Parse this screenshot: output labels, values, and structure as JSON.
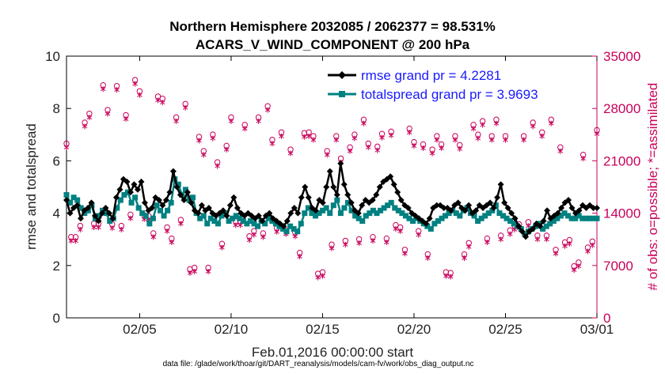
{
  "chart_data": {
    "type": "line",
    "title": "Northern Hemisphere 2032085 / 2062377 = 98.531%",
    "subtitle": "ACARS_V_WIND_COMPONENT @ 200 hPa",
    "ylabel": "rmse and totalspread",
    "ylabel_right": "# of obs: o=possible; *=assimilated",
    "xlabel": "Feb.01,2016 00:00:00 start",
    "footnote": "data file: /glade/work/thoar/git/DART_reanalysis/models/cam-fv/work/obs_diag_output.nc",
    "xlim": [
      1,
      30
    ],
    "ylim": [
      0,
      10
    ],
    "ylim_right": [
      0,
      35000
    ],
    "x_ticks": [
      5,
      10,
      15,
      20,
      25,
      30
    ],
    "x_tick_labels": [
      "02/05",
      "02/10",
      "02/15",
      "02/20",
      "02/25",
      "03/01"
    ],
    "y_ticks": [
      0,
      2,
      4,
      6,
      8,
      10
    ],
    "y_tick_labels": [
      "0",
      "2",
      "4",
      "6",
      "8",
      "10"
    ],
    "y_ticks_right": [
      0,
      7000,
      14000,
      21000,
      28000,
      35000
    ],
    "y_tick_labels_right": [
      "0",
      "7000",
      "14000",
      "21000",
      "28000",
      "35000"
    ],
    "legend_position": "top-right",
    "colors": {
      "rmse": "#000000",
      "totalspread": "#008080",
      "obs": "#c8005a",
      "legend_text": "#1a1aff"
    },
    "series": [
      {
        "name": "rmse grand pr = 4.2281",
        "values": [
          4.5,
          4.0,
          4.2,
          4.3,
          3.8,
          4.1,
          4.2,
          4.4,
          3.9,
          3.7,
          4.0,
          4.2,
          4.0,
          3.8,
          4.6,
          4.9,
          5.3,
          5.2,
          4.8,
          5.1,
          4.9,
          5.2,
          4.4,
          4.1,
          4.2,
          4.6,
          4.5,
          4.3,
          4.5,
          4.8,
          5.6,
          5.0,
          4.7,
          4.5,
          4.8,
          4.4,
          4.1,
          4.0,
          4.3,
          4.1,
          4.2,
          4.0,
          3.9,
          4.0,
          4.1,
          3.9,
          4.3,
          4.6,
          4.2,
          4.0,
          3.9,
          4.0,
          3.9,
          3.8,
          3.9,
          3.7,
          3.9,
          4.0,
          3.8,
          3.7,
          3.6,
          3.5,
          3.7,
          4.0,
          4.2,
          4.0,
          4.6,
          5.0,
          4.6,
          4.2,
          4.1,
          4.5,
          4.4,
          5.0,
          5.6,
          5.0,
          4.7,
          5.9,
          5.1,
          4.7,
          4.4,
          4.1,
          4.0,
          4.3,
          4.5,
          4.4,
          4.5,
          4.7,
          5.0,
          5.2,
          5.3,
          5.4,
          5.1,
          4.8,
          4.5,
          4.3,
          4.2,
          4.0,
          3.9,
          3.8,
          3.7,
          3.6,
          3.8,
          4.2,
          4.3,
          4.3,
          4.2,
          4.2,
          4.1,
          4.3,
          4.4,
          4.2,
          4.1,
          4.3,
          4.0,
          4.1,
          4.3,
          4.2,
          4.3,
          4.4,
          4.2,
          4.6,
          5.1,
          4.4,
          4.2,
          4.0,
          3.8,
          3.5,
          3.3,
          3.1,
          3.3,
          3.4,
          3.6,
          3.5,
          3.7,
          4.1,
          3.8,
          3.9,
          4.0,
          4.2,
          4.4,
          4.5,
          4.2,
          4.0,
          4.1,
          4.3,
          4.2,
          4.3,
          4.2,
          4.2
        ]
      },
      {
        "name": "totalspread grand pr = 3.9693",
        "values": [
          4.7,
          4.4,
          4.6,
          4.5,
          4.2,
          4.0,
          4.1,
          4.3,
          3.8,
          3.9,
          4.1,
          4.0,
          3.7,
          3.8,
          4.2,
          4.5,
          4.7,
          4.8,
          4.4,
          4.6,
          4.2,
          4.0,
          3.9,
          3.6,
          3.8,
          4.3,
          4.1,
          3.9,
          4.1,
          4.4,
          5.3,
          5.1,
          4.7,
          4.9,
          4.5,
          4.6,
          4.0,
          3.8,
          3.9,
          3.6,
          3.8,
          3.7,
          3.6,
          3.9,
          4.0,
          3.7,
          3.8,
          3.9,
          3.8,
          3.7,
          3.6,
          3.7,
          3.6,
          3.5,
          3.7,
          3.6,
          3.8,
          3.7,
          3.6,
          3.5,
          3.4,
          3.3,
          3.5,
          3.4,
          3.3,
          3.6,
          4.0,
          4.2,
          4.0,
          3.9,
          4.0,
          4.1,
          4.2,
          4.0,
          4.3,
          4.5,
          4.0,
          4.2,
          4.4,
          4.1,
          3.9,
          3.8,
          3.7,
          3.9,
          4.0,
          4.1,
          4.0,
          4.1,
          4.2,
          4.3,
          4.4,
          4.2,
          4.1,
          4.0,
          3.9,
          3.8,
          3.7,
          3.8,
          3.7,
          3.6,
          3.5,
          3.4,
          3.6,
          3.7,
          3.8,
          3.9,
          4.0,
          4.1,
          4.0,
          3.9,
          4.1,
          4.2,
          4.0,
          3.9,
          3.7,
          3.8,
          3.9,
          4.0,
          4.1,
          4.3,
          4.0,
          3.9,
          3.8,
          3.7,
          3.6,
          3.5,
          3.4,
          3.2,
          3.3,
          3.4,
          3.5,
          3.6,
          3.4,
          3.5,
          3.6,
          3.7,
          3.8,
          3.9,
          4.0,
          3.9,
          3.8,
          3.8,
          3.9,
          3.8,
          3.8,
          3.8,
          3.8,
          3.8
        ]
      }
    ],
    "obs_counts": {
      "x": [
        1.0,
        1.25,
        1.5,
        1.75,
        2.0,
        2.25,
        2.5,
        2.75,
        3.0,
        3.25,
        3.5,
        3.75,
        4.0,
        4.25,
        4.5,
        4.75,
        5.0,
        5.25,
        5.5,
        5.75,
        6.0,
        6.25,
        6.5,
        6.75,
        7.0,
        7.25,
        7.5,
        7.75,
        8.0,
        8.25,
        8.5,
        8.75,
        9.0,
        9.25,
        9.5,
        9.75,
        10.0,
        10.25,
        10.5,
        10.75,
        11.0,
        11.25,
        11.5,
        11.75,
        12.0,
        12.25,
        12.5,
        12.75,
        13.0,
        13.25,
        13.5,
        13.75,
        14.0,
        14.25,
        14.5,
        14.75,
        15.0,
        15.25,
        15.5,
        15.75,
        16.0,
        16.25,
        16.5,
        16.75,
        17.0,
        17.25,
        17.5,
        17.75,
        18.0,
        18.25,
        18.5,
        18.75,
        19.0,
        19.25,
        19.5,
        19.75,
        20.0,
        20.25,
        20.5,
        20.75,
        21.0,
        21.25,
        21.5,
        21.75,
        22.0,
        22.25,
        22.5,
        22.75,
        23.0,
        23.25,
        23.5,
        23.75,
        24.0,
        24.25,
        24.5,
        24.75,
        25.0,
        25.25,
        25.5,
        25.75,
        26.0,
        26.25,
        26.5,
        26.75,
        27.0,
        27.25,
        27.5,
        27.75,
        28.0,
        28.25,
        28.5,
        28.75,
        29.0,
        29.25,
        29.5,
        29.75,
        30.0
      ],
      "possible": [
        23000,
        10500,
        10500,
        12000,
        25800,
        27000,
        12300,
        12300,
        30800,
        27500,
        12200,
        30700,
        12000,
        26800,
        13500,
        31500,
        30000,
        13400,
        13300,
        11000,
        29300,
        29000,
        11800,
        10300,
        26500,
        12800,
        28300,
        6200,
        6400,
        23900,
        22000,
        6400,
        24200,
        20500,
        9600,
        22700,
        26500,
        12600,
        12600,
        25500,
        10600,
        11300,
        26500,
        11000,
        28000,
        23500,
        11700,
        24500,
        11400,
        22200,
        11100,
        8400,
        24400,
        24500,
        24000,
        5600,
        5800,
        22000,
        9500,
        24000,
        21000,
        10000,
        22500,
        24200,
        10200,
        26200,
        23000,
        10500,
        22600,
        24300,
        10300,
        24600,
        12100,
        11800,
        8800,
        25000,
        23200,
        11300,
        22900,
        8200,
        22200,
        24000,
        22900,
        5800,
        5700,
        24000,
        22800,
        8200,
        9700,
        25500,
        24200,
        26000,
        10300,
        24000,
        26200,
        10700,
        24000,
        11400,
        12000,
        12200,
        24000,
        12500,
        25800,
        10700,
        24500,
        10700,
        26200,
        8800,
        22500,
        9800,
        10100,
        6600,
        7100,
        21500,
        9100,
        9900,
        24800
      ]
    }
  }
}
